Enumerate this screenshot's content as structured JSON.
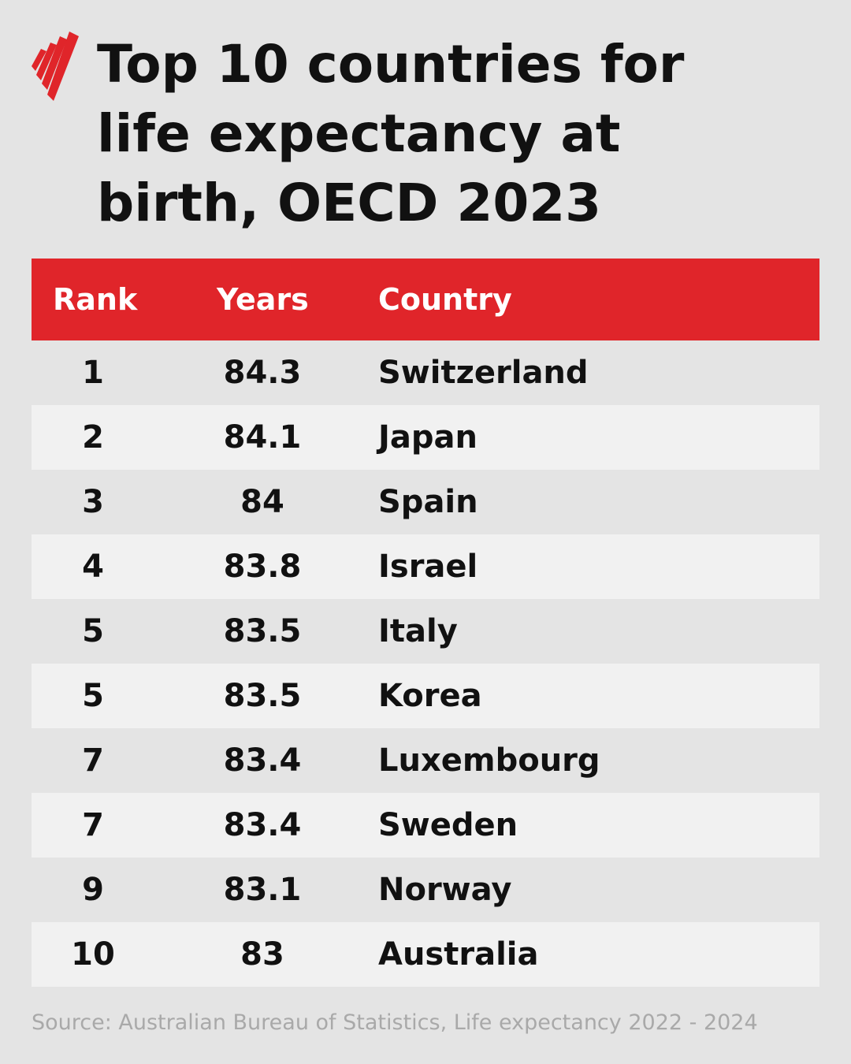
{
  "header": {
    "title": [
      "Top 10 countries for",
      "life expectancy at",
      "birth, OECD 2023"
    ]
  },
  "table": {
    "columns": [
      "Rank",
      "Years",
      "Country"
    ],
    "rows": [
      [
        1,
        84.3,
        "Switzerland"
      ],
      [
        2,
        84.1,
        "Japan"
      ],
      [
        3,
        84,
        "Spain"
      ],
      [
        4,
        83.8,
        "Israel"
      ],
      [
        5,
        83.5,
        "Italy"
      ],
      [
        5,
        83.5,
        "Korea"
      ],
      [
        7,
        83.4,
        "Luxembourg"
      ],
      [
        7,
        83.4,
        "Sweden"
      ],
      [
        9,
        83.1,
        "Norway"
      ],
      [
        10,
        83,
        "Australia"
      ]
    ]
  },
  "footer": {
    "source": "Source: Australian Bureau of Statistics, Life expectancy 2022 - 2024"
  }
}
